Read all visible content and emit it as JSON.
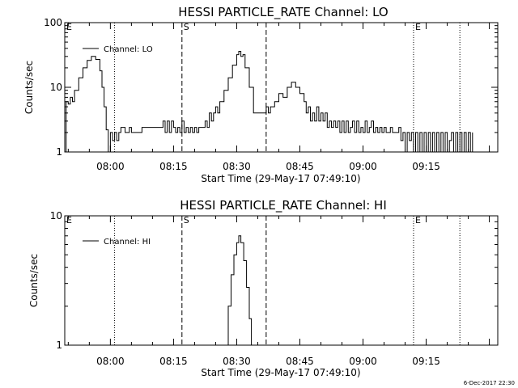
{
  "footer": {
    "timestamp": "6-Dec-2017 22:30"
  },
  "chart_data": [
    {
      "type": "line",
      "title": "HESSI PARTICLE_RATE Channel: LO",
      "xlabel": "Start Time (29-May-17 07:49:10)",
      "ylabel": "Counts/sec",
      "yscale": "log",
      "ylim": [
        1,
        100
      ],
      "xlim": [
        "07:49:10",
        "09:32:00"
      ],
      "x_ticks": [
        "08:00",
        "08:15",
        "08:30",
        "08:45",
        "09:00",
        "09:15"
      ],
      "y_ticks": [
        "1",
        "10",
        "100"
      ],
      "legend": {
        "position": "top-left",
        "entries": [
          "Channel: LO"
        ]
      },
      "markers": [
        {
          "label": "E",
          "time": "07:49:10",
          "style": "dotted"
        },
        {
          "label": "",
          "time": "08:01:00",
          "style": "dotted"
        },
        {
          "label": "S",
          "time": "08:17:00",
          "style": "dashed"
        },
        {
          "label": "",
          "time": "08:37:00",
          "style": "dashed"
        },
        {
          "label": "E",
          "time": "09:12:00",
          "style": "dotted"
        },
        {
          "label": "",
          "time": "09:23:00",
          "style": "dotted"
        }
      ],
      "series": [
        {
          "name": "Channel: LO",
          "points": [
            [
              "07:49:10",
              1
            ],
            [
              "07:49:30",
              6
            ],
            [
              "07:50:00",
              5.5
            ],
            [
              "07:50:30",
              7
            ],
            [
              "07:51:00",
              6
            ],
            [
              "07:51:30",
              9
            ],
            [
              "07:52:30",
              14
            ],
            [
              "07:53:30",
              20
            ],
            [
              "07:54:30",
              26
            ],
            [
              "07:55:30",
              30
            ],
            [
              "07:56:30",
              27
            ],
            [
              "07:57:30",
              18
            ],
            [
              "07:58:00",
              10
            ],
            [
              "07:58:30",
              5
            ],
            [
              "07:59:00",
              2.2
            ],
            [
              "07:59:30",
              1
            ],
            [
              "08:00:00",
              2
            ],
            [
              "08:00:30",
              1.5
            ],
            [
              "08:01:00",
              2
            ],
            [
              "08:01:30",
              1.5
            ],
            [
              "08:02:00",
              2
            ],
            [
              "08:02:30",
              2.4
            ],
            [
              "08:03:00",
              2.4
            ],
            [
              "08:03:30",
              2
            ],
            [
              "08:04:00",
              2
            ],
            [
              "08:04:30",
              2.4
            ],
            [
              "08:05:00",
              2
            ],
            [
              "08:07:00",
              2
            ],
            [
              "08:07:30",
              2.4
            ],
            [
              "08:12:00",
              2.4
            ],
            [
              "08:12:30",
              3
            ],
            [
              "08:13:00",
              2
            ],
            [
              "08:13:30",
              3
            ],
            [
              "08:14:00",
              2
            ],
            [
              "08:14:30",
              3
            ],
            [
              "08:15:00",
              2.4
            ],
            [
              "08:15:30",
              2
            ],
            [
              "08:16:00",
              2.4
            ],
            [
              "08:16:30",
              2
            ],
            [
              "08:17:00",
              3
            ],
            [
              "08:17:30",
              2
            ],
            [
              "08:18:00",
              2.4
            ],
            [
              "08:18:30",
              2
            ],
            [
              "08:19:00",
              2.4
            ],
            [
              "08:19:30",
              2
            ],
            [
              "08:20:00",
              2.4
            ],
            [
              "08:20:30",
              2
            ],
            [
              "08:21:00",
              2.4
            ],
            [
              "08:22:00",
              2.4
            ],
            [
              "08:22:30",
              3
            ],
            [
              "08:23:00",
              2.4
            ],
            [
              "08:23:30",
              4
            ],
            [
              "08:24:00",
              3
            ],
            [
              "08:24:30",
              4
            ],
            [
              "08:25:00",
              5
            ],
            [
              "08:25:30",
              4
            ],
            [
              "08:26:00",
              6
            ],
            [
              "08:27:00",
              9
            ],
            [
              "08:28:00",
              14
            ],
            [
              "08:29:00",
              22
            ],
            [
              "08:30:00",
              32
            ],
            [
              "08:30:30",
              36
            ],
            [
              "08:31:00",
              30
            ],
            [
              "08:31:30",
              32
            ],
            [
              "08:32:00",
              20
            ],
            [
              "08:33:00",
              10
            ],
            [
              "08:34:00",
              4
            ],
            [
              "08:35:00",
              4
            ],
            [
              "08:36:00",
              4
            ],
            [
              "08:37:00",
              5
            ],
            [
              "08:37:30",
              4
            ],
            [
              "08:38:00",
              5
            ],
            [
              "08:39:00",
              6
            ],
            [
              "08:40:00",
              8
            ],
            [
              "08:41:00",
              7
            ],
            [
              "08:42:00",
              10
            ],
            [
              "08:43:00",
              12
            ],
            [
              "08:44:00",
              10
            ],
            [
              "08:45:00",
              8
            ],
            [
              "08:46:00",
              6
            ],
            [
              "08:46:30",
              4
            ],
            [
              "08:47:00",
              5
            ],
            [
              "08:47:30",
              3
            ],
            [
              "08:48:00",
              4
            ],
            [
              "08:48:30",
              3
            ],
            [
              "08:49:00",
              5
            ],
            [
              "08:49:30",
              3
            ],
            [
              "08:50:00",
              4
            ],
            [
              "08:50:30",
              3
            ],
            [
              "08:51:00",
              4
            ],
            [
              "08:51:30",
              2.4
            ],
            [
              "08:52:00",
              3
            ],
            [
              "08:52:30",
              2.4
            ],
            [
              "08:53:00",
              3
            ],
            [
              "08:53:30",
              2.4
            ],
            [
              "08:54:00",
              3
            ],
            [
              "08:54:30",
              2
            ],
            [
              "08:55:00",
              3
            ],
            [
              "08:55:30",
              2
            ],
            [
              "08:56:00",
              3
            ],
            [
              "08:56:30",
              2
            ],
            [
              "08:57:00",
              2.4
            ],
            [
              "08:57:30",
              3
            ],
            [
              "08:58:00",
              2
            ],
            [
              "08:58:30",
              3
            ],
            [
              "08:59:00",
              2
            ],
            [
              "08:59:30",
              2.4
            ],
            [
              "09:00:00",
              2
            ],
            [
              "09:00:30",
              3
            ],
            [
              "09:01:00",
              2
            ],
            [
              "09:01:30",
              2.4
            ],
            [
              "09:02:00",
              3
            ],
            [
              "09:02:30",
              2
            ],
            [
              "09:03:00",
              2.4
            ],
            [
              "09:03:30",
              2
            ],
            [
              "09:04:00",
              2.4
            ],
            [
              "09:04:30",
              2
            ],
            [
              "09:05:00",
              2.4
            ],
            [
              "09:05:30",
              2
            ],
            [
              "09:06:00",
              2
            ],
            [
              "09:06:30",
              2.4
            ],
            [
              "09:07:00",
              2
            ],
            [
              "09:08:00",
              2
            ],
            [
              "09:08:30",
              2.4
            ],
            [
              "09:09:00",
              1.5
            ],
            [
              "09:09:30",
              2
            ],
            [
              "09:10:00",
              1
            ],
            [
              "09:10:30",
              2
            ],
            [
              "09:11:00",
              1.5
            ],
            [
              "09:11:30",
              2
            ],
            [
              "09:12:00",
              1
            ],
            [
              "09:12:30",
              2
            ],
            [
              "09:13:00",
              1
            ],
            [
              "09:13:30",
              2
            ],
            [
              "09:14:00",
              1
            ],
            [
              "09:14:30",
              2
            ],
            [
              "09:15:00",
              1
            ],
            [
              "09:15:30",
              2
            ],
            [
              "09:16:00",
              1
            ],
            [
              "09:16:30",
              2
            ],
            [
              "09:17:00",
              1
            ],
            [
              "09:17:30",
              2
            ],
            [
              "09:18:00",
              1
            ],
            [
              "09:18:30",
              2
            ],
            [
              "09:19:00",
              1
            ],
            [
              "09:19:30",
              2
            ],
            [
              "09:20:00",
              1
            ],
            [
              "09:20:30",
              1.5
            ],
            [
              "09:21:00",
              2
            ],
            [
              "09:21:30",
              1
            ],
            [
              "09:22:00",
              2
            ],
            [
              "09:22:30",
              1
            ],
            [
              "09:23:00",
              2
            ],
            [
              "09:23:30",
              1
            ],
            [
              "09:24:00",
              2
            ],
            [
              "09:24:30",
              1
            ],
            [
              "09:25:00",
              2
            ],
            [
              "09:25:30",
              1
            ],
            [
              "09:26:00",
              2
            ]
          ]
        }
      ]
    },
    {
      "type": "line",
      "title": "HESSI PARTICLE_RATE Channel: HI",
      "xlabel": "Start Time (29-May-17 07:49:10)",
      "ylabel": "Counts/sec",
      "yscale": "log",
      "ylim": [
        1,
        10
      ],
      "xlim": [
        "07:49:10",
        "09:32:00"
      ],
      "x_ticks": [
        "08:00",
        "08:15",
        "08:30",
        "08:45",
        "09:00",
        "09:15"
      ],
      "y_ticks": [
        "1",
        "10"
      ],
      "legend": {
        "position": "top-left",
        "entries": [
          "Channel: HI"
        ]
      },
      "markers": [
        {
          "label": "E",
          "time": "07:49:10",
          "style": "dotted"
        },
        {
          "label": "",
          "time": "08:01:00",
          "style": "dotted"
        },
        {
          "label": "S",
          "time": "08:17:00",
          "style": "dashed"
        },
        {
          "label": "",
          "time": "08:37:00",
          "style": "dashed"
        },
        {
          "label": "E",
          "time": "09:12:00",
          "style": "dotted"
        },
        {
          "label": "",
          "time": "09:23:00",
          "style": "dotted"
        }
      ],
      "series": [
        {
          "name": "Channel: HI",
          "points": [
            [
              "08:27:20",
              1
            ],
            [
              "08:28:00",
              2
            ],
            [
              "08:28:40",
              3.5
            ],
            [
              "08:29:20",
              5
            ],
            [
              "08:30:00",
              6.2
            ],
            [
              "08:30:30",
              7
            ],
            [
              "08:31:00",
              6.2
            ],
            [
              "08:31:40",
              4.5
            ],
            [
              "08:32:20",
              2.8
            ],
            [
              "08:33:00",
              1.6
            ],
            [
              "08:33:30",
              1
            ]
          ]
        }
      ]
    }
  ]
}
